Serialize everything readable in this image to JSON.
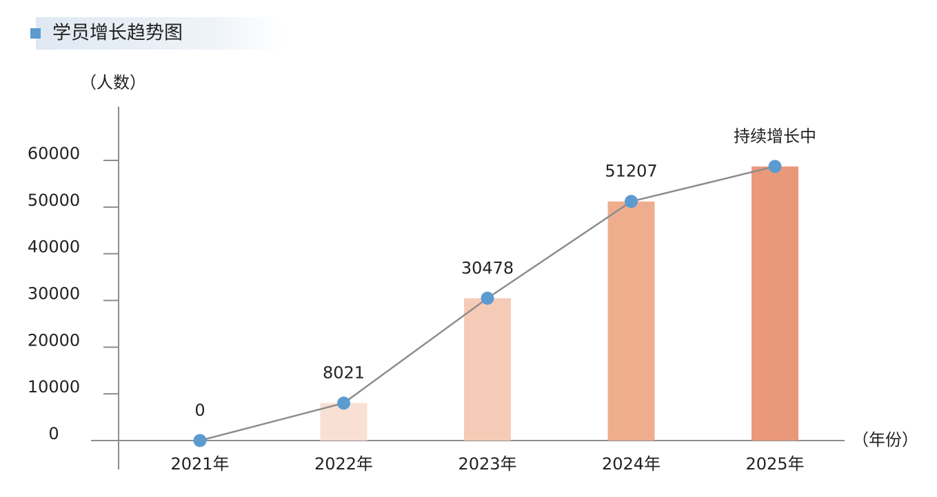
{
  "chart_data": {
    "type": "bar-line",
    "title": "学员增长趋势图",
    "y_label": "（人数）",
    "x_label": "（年份）",
    "categories": [
      "2021年",
      "2022年",
      "2023年",
      "2024年",
      "2025年"
    ],
    "values": [
      0,
      8021,
      30478,
      51207,
      58700
    ],
    "value_labels": [
      "0",
      "8021",
      "30478",
      "51207",
      "持续增长中"
    ],
    "colors": [
      "#fbe6dc",
      "#f9e0d4",
      "#f5cbb7",
      "#eeae8e",
      "#e9997a"
    ],
    "line_color": "#8c8c8c",
    "marker_color": "#5b9bd0",
    "ylim": [
      0,
      71500
    ],
    "yticks": [
      0,
      10000,
      20000,
      30000,
      40000,
      50000,
      60000
    ]
  }
}
